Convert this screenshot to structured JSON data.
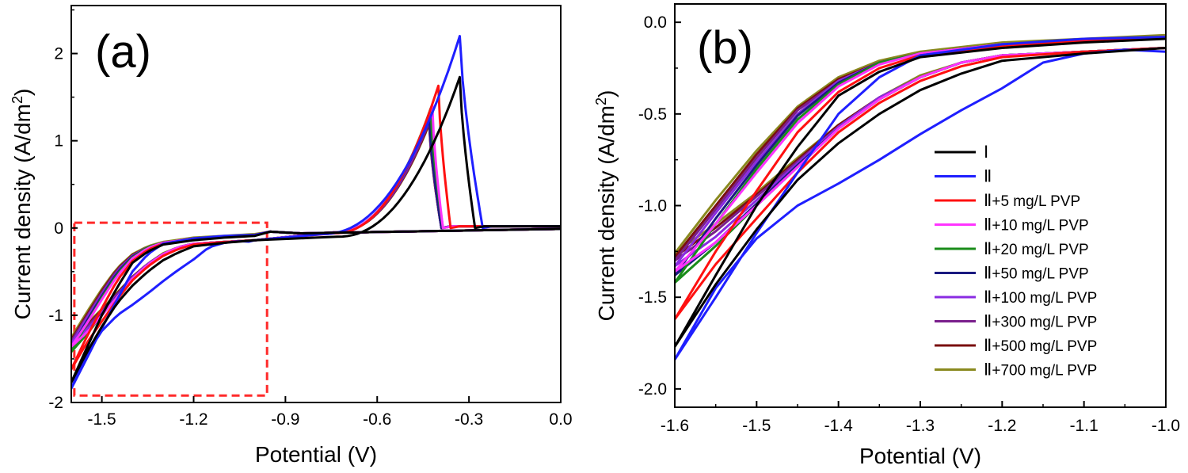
{
  "chart_data": [
    {
      "type": "line",
      "panel_label": "(a)",
      "xlabel": "Potential (V)",
      "ylabel_main": "Current density (A/dm",
      "ylabel_sup": "2",
      "ylabel_close": ")",
      "xlim": [
        -1.6,
        0.0
      ],
      "ylim": [
        -2.0,
        2.55
      ],
      "xticks": [
        -1.5,
        -1.2,
        -0.9,
        -0.6,
        -0.3,
        0.0
      ],
      "xtick_labels": [
        "-1.5",
        "-1.2",
        "-0.9",
        "-0.6",
        "-0.3",
        "0.0"
      ],
      "yticks": [
        -2,
        -1,
        0,
        1,
        2
      ],
      "ytick_labels": [
        "-2",
        "-1",
        "0",
        "1",
        "2"
      ],
      "zoom_box": {
        "x": [
          -1.59,
          -0.96
        ],
        "y": [
          -1.92,
          0.06
        ]
      },
      "series_params": [
        {
          "peak_x": -0.33,
          "peak_y": 1.73,
          "drop_end": -0.28,
          "foot_x": -0.73,
          "anod_y": -0.1
        },
        {
          "peak_x": -0.33,
          "peak_y": 2.2,
          "drop_end": -0.255,
          "foot_x": -0.78,
          "anod_y": -0.07
        },
        {
          "peak_x": -0.4,
          "peak_y": 1.63,
          "drop_end": -0.36,
          "foot_x": -0.74,
          "anod_y": -0.06
        },
        {
          "peak_x": -0.42,
          "peak_y": 1.41,
          "drop_end": -0.385,
          "foot_x": -0.74,
          "anod_y": -0.05
        },
        {
          "peak_x": -0.425,
          "peak_y": 1.37,
          "drop_end": -0.385,
          "foot_x": -0.74,
          "anod_y": -0.05
        },
        {
          "peak_x": -0.43,
          "peak_y": 1.29,
          "drop_end": -0.39,
          "foot_x": -0.74,
          "anod_y": -0.05
        },
        {
          "peak_x": -0.43,
          "peak_y": 1.27,
          "drop_end": -0.39,
          "foot_x": -0.74,
          "anod_y": -0.05
        },
        {
          "peak_x": -0.43,
          "peak_y": 1.22,
          "drop_end": -0.39,
          "foot_x": -0.74,
          "anod_y": -0.05
        },
        {
          "peak_x": -0.43,
          "peak_y": 1.2,
          "drop_end": -0.39,
          "foot_x": -0.74,
          "anod_y": -0.05
        },
        {
          "peak_x": -0.43,
          "peak_y": 1.19,
          "drop_end": -0.39,
          "foot_x": -0.74,
          "anod_y": -0.05
        }
      ]
    },
    {
      "type": "line",
      "panel_label": "(b)",
      "xlabel": "Potential (V)",
      "ylabel_main": "Current density (A/dm",
      "ylabel_sup": "2",
      "ylabel_close": ")",
      "xlim": [
        -1.6,
        -1.0
      ],
      "ylim": [
        -2.1,
        0.1
      ],
      "xticks": [
        -1.6,
        -1.5,
        -1.4,
        -1.3,
        -1.2,
        -1.1,
        -1.0
      ],
      "xtick_labels": [
        "-1.6",
        "-1.5",
        "-1.4",
        "-1.3",
        "-1.2",
        "-1.1",
        "-1.0"
      ],
      "yticks": [
        0.0,
        -0.5,
        -1.0,
        -1.5,
        -2.0
      ],
      "ytick_labels": [
        "0.0",
        "-0.5",
        "-1.0",
        "-1.5",
        "-2.0"
      ]
    }
  ],
  "series": [
    {
      "name_roman": "Ⅰ",
      "name_rest": "",
      "color": "#000000",
      "fwd": [
        [
          -1.0,
          -0.09
        ],
        [
          -1.1,
          -0.11
        ],
        [
          -1.2,
          -0.14
        ],
        [
          -1.3,
          -0.19
        ],
        [
          -1.35,
          -0.27
        ],
        [
          -1.4,
          -0.4
        ],
        [
          -1.45,
          -0.68
        ],
        [
          -1.5,
          -1.0
        ],
        [
          -1.55,
          -1.38
        ],
        [
          -1.6,
          -1.77
        ]
      ],
      "rev": [
        [
          -1.6,
          -1.77
        ],
        [
          -1.55,
          -1.43
        ],
        [
          -1.5,
          -1.13
        ],
        [
          -1.45,
          -0.86
        ],
        [
          -1.4,
          -0.66
        ],
        [
          -1.35,
          -0.5
        ],
        [
          -1.3,
          -0.37
        ],
        [
          -1.25,
          -0.28
        ],
        [
          -1.2,
          -0.21
        ],
        [
          -1.1,
          -0.17
        ],
        [
          -1.0,
          -0.14
        ]
      ]
    },
    {
      "name_roman": "Ⅱ",
      "name_rest": "",
      "color": "#1f1fff",
      "fwd": [
        [
          -1.0,
          -0.08
        ],
        [
          -1.1,
          -0.09
        ],
        [
          -1.2,
          -0.12
        ],
        [
          -1.3,
          -0.18
        ],
        [
          -1.35,
          -0.3
        ],
        [
          -1.4,
          -0.5
        ],
        [
          -1.45,
          -0.82
        ],
        [
          -1.5,
          -1.15
        ],
        [
          -1.55,
          -1.5
        ],
        [
          -1.6,
          -1.84
        ]
      ],
      "rev": [
        [
          -1.6,
          -1.84
        ],
        [
          -1.55,
          -1.45
        ],
        [
          -1.5,
          -1.18
        ],
        [
          -1.45,
          -1.0
        ],
        [
          -1.4,
          -0.88
        ],
        [
          -1.35,
          -0.75
        ],
        [
          -1.3,
          -0.61
        ],
        [
          -1.25,
          -0.48
        ],
        [
          -1.2,
          -0.36
        ],
        [
          -1.15,
          -0.22
        ],
        [
          -1.1,
          -0.17
        ],
        [
          -1.05,
          -0.15
        ],
        [
          -1.0,
          -0.16
        ]
      ]
    },
    {
      "name_roman": "Ⅱ",
      "name_rest": "+5 mg/L PVP",
      "color": "#ff1010",
      "fwd": [
        [
          -1.0,
          -0.08
        ],
        [
          -1.1,
          -0.1
        ],
        [
          -1.2,
          -0.13
        ],
        [
          -1.3,
          -0.18
        ],
        [
          -1.35,
          -0.25
        ],
        [
          -1.4,
          -0.38
        ],
        [
          -1.45,
          -0.6
        ],
        [
          -1.5,
          -0.92
        ],
        [
          -1.55,
          -1.25
        ],
        [
          -1.6,
          -1.62
        ]
      ],
      "rev": [
        [
          -1.6,
          -1.62
        ],
        [
          -1.55,
          -1.32
        ],
        [
          -1.5,
          -1.07
        ],
        [
          -1.45,
          -0.82
        ],
        [
          -1.4,
          -0.6
        ],
        [
          -1.35,
          -0.44
        ],
        [
          -1.3,
          -0.32
        ],
        [
          -1.25,
          -0.24
        ],
        [
          -1.2,
          -0.19
        ],
        [
          -1.1,
          -0.16
        ],
        [
          -1.0,
          -0.14
        ]
      ]
    },
    {
      "name_roman": "Ⅱ",
      "name_rest": "+10 mg/L PVP",
      "color": "#ff33ff",
      "fwd": [
        [
          -1.0,
          -0.08
        ],
        [
          -1.1,
          -0.1
        ],
        [
          -1.2,
          -0.12
        ],
        [
          -1.3,
          -0.17
        ],
        [
          -1.35,
          -0.23
        ],
        [
          -1.4,
          -0.35
        ],
        [
          -1.45,
          -0.55
        ],
        [
          -1.5,
          -0.82
        ],
        [
          -1.55,
          -1.1
        ],
        [
          -1.6,
          -1.36
        ]
      ],
      "rev": [
        [
          -1.6,
          -1.36
        ],
        [
          -1.55,
          -1.2
        ],
        [
          -1.5,
          -1.0
        ],
        [
          -1.45,
          -0.79
        ],
        [
          -1.4,
          -0.58
        ],
        [
          -1.35,
          -0.42
        ],
        [
          -1.3,
          -0.3
        ],
        [
          -1.25,
          -0.22
        ],
        [
          -1.2,
          -0.18
        ],
        [
          -1.1,
          -0.16
        ],
        [
          -1.0,
          -0.14
        ]
      ]
    },
    {
      "name_roman": "Ⅱ",
      "name_rest": "+20 mg/L PVP",
      "color": "#1a8c1a",
      "fwd": [
        [
          -1.0,
          -0.08
        ],
        [
          -1.1,
          -0.1
        ],
        [
          -1.2,
          -0.12
        ],
        [
          -1.3,
          -0.17
        ],
        [
          -1.35,
          -0.22
        ],
        [
          -1.4,
          -0.34
        ],
        [
          -1.45,
          -0.53
        ],
        [
          -1.5,
          -0.8
        ],
        [
          -1.55,
          -1.1
        ],
        [
          -1.6,
          -1.42
        ]
      ],
      "rev": [
        [
          -1.6,
          -1.42
        ],
        [
          -1.55,
          -1.22
        ],
        [
          -1.5,
          -1.0
        ],
        [
          -1.45,
          -0.79
        ],
        [
          -1.4,
          -0.58
        ],
        [
          -1.35,
          -0.42
        ],
        [
          -1.3,
          -0.3
        ],
        [
          -1.25,
          -0.22
        ],
        [
          -1.2,
          -0.18
        ],
        [
          -1.1,
          -0.16
        ],
        [
          -1.0,
          -0.14
        ]
      ]
    },
    {
      "name_roman": "Ⅱ",
      "name_rest": "+50 mg/L PVP",
      "color": "#1a1a80",
      "fwd": [
        [
          -1.0,
          -0.08
        ],
        [
          -1.1,
          -0.1
        ],
        [
          -1.2,
          -0.12
        ],
        [
          -1.3,
          -0.17
        ],
        [
          -1.35,
          -0.22
        ],
        [
          -1.4,
          -0.33
        ],
        [
          -1.45,
          -0.51
        ],
        [
          -1.5,
          -0.78
        ],
        [
          -1.55,
          -1.07
        ],
        [
          -1.6,
          -1.38
        ]
      ],
      "rev": [
        [
          -1.6,
          -1.38
        ],
        [
          -1.55,
          -1.2
        ],
        [
          -1.5,
          -0.99
        ],
        [
          -1.45,
          -0.78
        ],
        [
          -1.4,
          -0.58
        ],
        [
          -1.35,
          -0.42
        ],
        [
          -1.3,
          -0.3
        ],
        [
          -1.25,
          -0.22
        ],
        [
          -1.2,
          -0.18
        ],
        [
          -1.1,
          -0.16
        ],
        [
          -1.0,
          -0.14
        ]
      ]
    },
    {
      "name_roman": "Ⅱ",
      "name_rest": "+100 mg/L PVP",
      "color": "#8a2be2",
      "fwd": [
        [
          -1.0,
          -0.08
        ],
        [
          -1.1,
          -0.1
        ],
        [
          -1.2,
          -0.12
        ],
        [
          -1.3,
          -0.17
        ],
        [
          -1.35,
          -0.22
        ],
        [
          -1.4,
          -0.32
        ],
        [
          -1.45,
          -0.5
        ],
        [
          -1.5,
          -0.76
        ],
        [
          -1.55,
          -1.04
        ],
        [
          -1.6,
          -1.33
        ]
      ],
      "rev": [
        [
          -1.6,
          -1.33
        ],
        [
          -1.55,
          -1.17
        ],
        [
          -1.5,
          -0.97
        ],
        [
          -1.45,
          -0.77
        ],
        [
          -1.4,
          -0.57
        ],
        [
          -1.35,
          -0.41
        ],
        [
          -1.3,
          -0.3
        ],
        [
          -1.25,
          -0.22
        ],
        [
          -1.2,
          -0.18
        ],
        [
          -1.1,
          -0.16
        ],
        [
          -1.0,
          -0.14
        ]
      ]
    },
    {
      "name_roman": "Ⅱ",
      "name_rest": "+300 mg/L PVP",
      "color": "#7a1f8c",
      "fwd": [
        [
          -1.0,
          -0.08
        ],
        [
          -1.1,
          -0.1
        ],
        [
          -1.2,
          -0.12
        ],
        [
          -1.3,
          -0.17
        ],
        [
          -1.35,
          -0.22
        ],
        [
          -1.4,
          -0.32
        ],
        [
          -1.45,
          -0.48
        ],
        [
          -1.5,
          -0.74
        ],
        [
          -1.55,
          -1.02
        ],
        [
          -1.6,
          -1.3
        ]
      ],
      "rev": [
        [
          -1.6,
          -1.3
        ],
        [
          -1.55,
          -1.14
        ],
        [
          -1.5,
          -0.95
        ],
        [
          -1.45,
          -0.76
        ],
        [
          -1.4,
          -0.57
        ],
        [
          -1.35,
          -0.41
        ],
        [
          -1.3,
          -0.3
        ],
        [
          -1.25,
          -0.22
        ],
        [
          -1.2,
          -0.18
        ],
        [
          -1.1,
          -0.16
        ],
        [
          -1.0,
          -0.14
        ]
      ]
    },
    {
      "name_roman": "Ⅱ",
      "name_rest": "+500 mg/L PVP",
      "color": "#7a0f0f",
      "fwd": [
        [
          -1.0,
          -0.08
        ],
        [
          -1.1,
          -0.1
        ],
        [
          -1.2,
          -0.12
        ],
        [
          -1.3,
          -0.17
        ],
        [
          -1.35,
          -0.22
        ],
        [
          -1.4,
          -0.31
        ],
        [
          -1.45,
          -0.47
        ],
        [
          -1.5,
          -0.72
        ],
        [
          -1.55,
          -1.0
        ],
        [
          -1.6,
          -1.28
        ]
      ],
      "rev": [
        [
          -1.6,
          -1.28
        ],
        [
          -1.55,
          -1.12
        ],
        [
          -1.5,
          -0.94
        ],
        [
          -1.45,
          -0.75
        ],
        [
          -1.4,
          -0.56
        ],
        [
          -1.35,
          -0.41
        ],
        [
          -1.3,
          -0.3
        ],
        [
          -1.25,
          -0.22
        ],
        [
          -1.2,
          -0.18
        ],
        [
          -1.1,
          -0.16
        ],
        [
          -1.0,
          -0.14
        ]
      ]
    },
    {
      "name_roman": "Ⅱ",
      "name_rest": "+700 mg/L PVP",
      "color": "#8a8a1f",
      "fwd": [
        [
          -1.0,
          -0.07
        ],
        [
          -1.1,
          -0.09
        ],
        [
          -1.2,
          -0.11
        ],
        [
          -1.3,
          -0.16
        ],
        [
          -1.35,
          -0.21
        ],
        [
          -1.4,
          -0.3
        ],
        [
          -1.45,
          -0.46
        ],
        [
          -1.5,
          -0.7
        ],
        [
          -1.55,
          -0.97
        ],
        [
          -1.6,
          -1.26
        ]
      ],
      "rev": [
        [
          -1.6,
          -1.26
        ],
        [
          -1.55,
          -1.1
        ],
        [
          -1.5,
          -0.93
        ],
        [
          -1.45,
          -0.74
        ],
        [
          -1.4,
          -0.56
        ],
        [
          -1.35,
          -0.41
        ],
        [
          -1.3,
          -0.29
        ],
        [
          -1.25,
          -0.22
        ],
        [
          -1.2,
          -0.18
        ],
        [
          -1.1,
          -0.16
        ],
        [
          -1.0,
          -0.14
        ]
      ]
    }
  ]
}
